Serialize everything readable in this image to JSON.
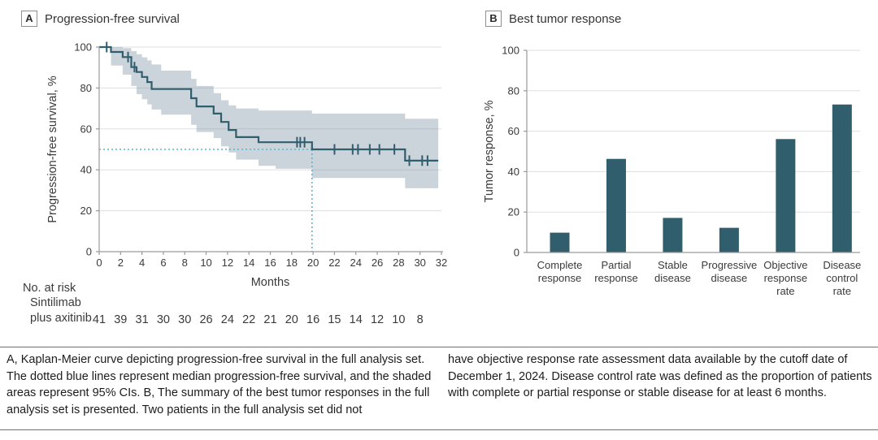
{
  "panel_a": {
    "letter": "A",
    "title": "Progression-free survival",
    "risk_table_header": "No. at risk",
    "risk_group_line1": "Sintilimab",
    "risk_group_line2": "plus axitinib"
  },
  "panel_b": {
    "letter": "B",
    "title": "Best tumor response"
  },
  "caption": {
    "left": "A, Kaplan-Meier curve depicting progression-free survival in the full analysis set. The dotted blue lines represent median progression-free survival, and the shaded areas represent 95% CIs. B, The summary of the best tumor responses in the full analysis set is presented. Two patients in the full analysis set did not",
    "right": "have objective response rate assessment data available by the cutoff date of December 1, 2024. Disease control rate was defined as the proportion of patients with complete or partial response or stable disease for at least 6 months."
  },
  "colors": {
    "curve": "#315e6d",
    "bar": "#315e6d",
    "ci_band": "#cbd4db",
    "median_line": "#54b6d8",
    "axis": "#9a9a9a",
    "grid": "rgba(130,140,150,0.28)",
    "tick_text": "#3a3a3a",
    "caption_text": "#1c1c1c"
  },
  "chart_data": [
    {
      "type": "line",
      "subtype": "kaplan-meier-step",
      "title": "Progression-free survival",
      "xlabel": "Months",
      "ylabel": "Progression-free survival, %",
      "xlim": [
        0,
        32
      ],
      "ylim": [
        0,
        100
      ],
      "xticks": [
        0,
        2,
        4,
        6,
        8,
        10,
        12,
        14,
        16,
        18,
        20,
        22,
        24,
        26,
        28,
        30,
        32
      ],
      "yticks": [
        0,
        20,
        40,
        60,
        80,
        100
      ],
      "grid": true,
      "series": [
        {
          "name": "Sintilimab plus axitinib",
          "steps": [
            [
              0,
              100
            ],
            [
              1.1,
              97.6
            ],
            [
              2.2,
              95.1
            ],
            [
              3.0,
              90.2
            ],
            [
              3.5,
              87.8
            ],
            [
              4.0,
              85.4
            ],
            [
              4.5,
              82.9
            ],
            [
              4.9,
              79.5
            ],
            [
              8.6,
              75.0
            ],
            [
              9.1,
              71.0
            ],
            [
              10.7,
              67.5
            ],
            [
              11.4,
              63.4
            ],
            [
              12.1,
              59.5
            ],
            [
              12.8,
              56.0
            ],
            [
              14.9,
              53.5
            ],
            [
              19.9,
              50.0
            ],
            [
              28.6,
              44.5
            ]
          ],
          "end_time": 31.7
        }
      ],
      "censor_marks": [
        [
          0.7,
          100
        ],
        [
          2.7,
          95.1
        ],
        [
          3.3,
          90.2
        ],
        [
          18.5,
          53.5
        ],
        [
          18.8,
          53.5
        ],
        [
          19.2,
          53.5
        ],
        [
          22.0,
          50
        ],
        [
          23.7,
          50
        ],
        [
          24.2,
          50
        ],
        [
          25.3,
          50
        ],
        [
          26.2,
          50
        ],
        [
          27.6,
          50
        ],
        [
          29.0,
          44.5
        ],
        [
          30.2,
          44.5
        ],
        [
          30.7,
          44.5
        ]
      ],
      "ci_upper": [
        [
          0,
          100
        ],
        [
          2.2,
          99.5
        ],
        [
          3.0,
          98
        ],
        [
          3.5,
          96.5
        ],
        [
          4.0,
          95
        ],
        [
          4.5,
          93.5
        ],
        [
          4.9,
          91.5
        ],
        [
          5.8,
          88.5
        ],
        [
          8.6,
          84.5
        ],
        [
          9.1,
          81
        ],
        [
          10.7,
          77.5
        ],
        [
          11.4,
          74
        ],
        [
          12.1,
          71.5
        ],
        [
          12.8,
          70
        ],
        [
          14.9,
          69
        ],
        [
          19.9,
          67.5
        ],
        [
          28.6,
          65
        ]
      ],
      "ci_lower": [
        [
          0,
          100
        ],
        [
          1.1,
          91
        ],
        [
          2.2,
          86.5
        ],
        [
          3.0,
          81
        ],
        [
          3.5,
          77
        ],
        [
          4.0,
          74.5
        ],
        [
          4.5,
          72
        ],
        [
          4.9,
          69.5
        ],
        [
          5.8,
          67
        ],
        [
          8.6,
          62
        ],
        [
          9.1,
          58.5
        ],
        [
          10.7,
          55.5
        ],
        [
          11.4,
          51.5
        ],
        [
          12.1,
          48.5
        ],
        [
          12.8,
          45
        ],
        [
          14.9,
          42
        ],
        [
          16.5,
          40.5
        ],
        [
          19.9,
          36
        ],
        [
          28.6,
          31
        ]
      ],
      "median": {
        "time": 19.9,
        "survival": 50
      },
      "risk_table": {
        "group": "Sintilimab plus axitinib",
        "times": [
          0,
          2,
          4,
          6,
          8,
          10,
          12,
          14,
          16,
          18,
          20,
          22,
          24,
          26,
          28,
          30
        ],
        "values": [
          41,
          39,
          31,
          30,
          30,
          26,
          24,
          22,
          21,
          20,
          16,
          15,
          14,
          12,
          10,
          8
        ]
      }
    },
    {
      "type": "bar",
      "title": "Best tumor response",
      "xlabel": "",
      "ylabel": "Tumor response, %",
      "ylim": [
        0,
        100
      ],
      "yticks": [
        0,
        20,
        40,
        60,
        80,
        100
      ],
      "grid": true,
      "categories": [
        "Complete response",
        "Partial response",
        "Stable disease",
        "Progressive disease",
        "Objective response rate",
        "Disease control rate"
      ],
      "category_label_lines": [
        [
          "Complete",
          "response"
        ],
        [
          "Partial",
          "response"
        ],
        [
          "Stable",
          "disease"
        ],
        [
          "Progressive",
          "disease"
        ],
        [
          "Objective",
          "response",
          "rate"
        ],
        [
          "Disease",
          "control",
          "rate"
        ]
      ],
      "values": [
        9.8,
        46.3,
        17.1,
        12.2,
        56.1,
        73.2
      ]
    }
  ]
}
